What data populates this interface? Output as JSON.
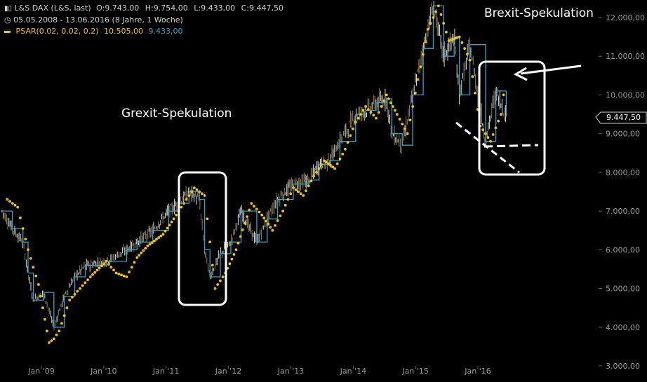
{
  "header": {
    "instrument": "L&S DAX (L&S, last)",
    "open_label": "O:",
    "open_value": "9.743,00",
    "high_label": "H:",
    "high_value": "9.754,00",
    "low_label": "L:",
    "low_value": "9.433,00",
    "close_label": "C:",
    "close_value": "9.447,50",
    "period": "05.05.2008 - 13.06.2016 (8 Jahre, 1 Woche)",
    "psar_label": "PSAR(0.02, 0.02, 0.2)",
    "psar_value": "10.505,00",
    "psar_last": "9.433,00"
  },
  "annotations": {
    "grexit": "Grexit-Spekulation",
    "brexit": "Brexit-Spekulation"
  },
  "last_price_label": "9.447,50",
  "colors": {
    "background": "#000000",
    "price_line": "#2fa6c8",
    "psar": "#f5c400",
    "candle": "#bfbfbf",
    "annotation": "#ffffff",
    "text": "#cfcfcf"
  },
  "icons": {
    "chart_type": "candlestick-icon",
    "period": "clock-icon",
    "psar_legend": "line-swatch-icon"
  },
  "chart_data": {
    "type": "line",
    "title": "L&S DAX (L&S, last)",
    "xlabel": "",
    "ylabel": "",
    "x_ticks": [
      "Jan '09",
      "Jan '10",
      "Jan '11",
      "Jan '12",
      "Jan '13",
      "Jan '14",
      "Jan '15",
      "Jan '16"
    ],
    "y_ticks": [
      "3.000,00",
      "4.000,00",
      "5.000,00",
      "6.000,00",
      "7.000,00",
      "8.000,00",
      "9.000,00",
      "10.000,00",
      "11.000,00",
      "12.000,00"
    ],
    "ylim": [
      3000,
      12500
    ],
    "x_range": [
      "2008-05-05",
      "2016-06-13"
    ],
    "grid": false,
    "price_series": {
      "name": "L&S DAX",
      "x": [
        "2008-05",
        "2008-07",
        "2008-09",
        "2008-10",
        "2008-11",
        "2009-01",
        "2009-03",
        "2009-05",
        "2009-07",
        "2009-09",
        "2010-01",
        "2010-05",
        "2010-07",
        "2010-10",
        "2011-01",
        "2011-03",
        "2011-05",
        "2011-07",
        "2011-08",
        "2011-09",
        "2011-11",
        "2012-01",
        "2012-03",
        "2012-06",
        "2012-08",
        "2012-10",
        "2013-01",
        "2013-04",
        "2013-06",
        "2013-08",
        "2013-10",
        "2014-01",
        "2014-03",
        "2014-05",
        "2014-07",
        "2014-08",
        "2014-10",
        "2014-12",
        "2015-02",
        "2015-04",
        "2015-06",
        "2015-08",
        "2015-09",
        "2015-11",
        "2016-02",
        "2016-04",
        "2016-06"
      ],
      "values": [
        7000,
        6550,
        6200,
        5400,
        4700,
        4900,
        4000,
        4800,
        5300,
        5600,
        5700,
        6000,
        6200,
        6500,
        7000,
        7200,
        7500,
        7300,
        6000,
        5300,
        5900,
        6200,
        7000,
        6200,
        6800,
        7300,
        7700,
        7800,
        8200,
        8300,
        8800,
        9500,
        9600,
        9800,
        9900,
        9000,
        8700,
        10000,
        11200,
        12300,
        11000,
        11500,
        10000,
        11300,
        8800,
        10100,
        9447.5
      ]
    },
    "psar_series": {
      "name": "PSAR(0.02, 0.02, 0.2)",
      "x": [
        "2008-06",
        "2008-08",
        "2008-10",
        "2008-12",
        "2009-02",
        "2009-03",
        "2009-04",
        "2009-06",
        "2009-08",
        "2009-10",
        "2010-01",
        "2010-03",
        "2010-05",
        "2010-07",
        "2010-09",
        "2010-12",
        "2011-02",
        "2011-04",
        "2011-06",
        "2011-08",
        "2011-10",
        "2011-12",
        "2012-02",
        "2012-05",
        "2012-07",
        "2012-09",
        "2012-11",
        "2013-01",
        "2013-03",
        "2013-05",
        "2013-07",
        "2013-09",
        "2013-11",
        "2014-01",
        "2014-03",
        "2014-05",
        "2014-07",
        "2014-09",
        "2014-11",
        "2015-01",
        "2015-03",
        "2015-05",
        "2015-07",
        "2015-09",
        "2015-11",
        "2016-01",
        "2016-03",
        "2016-05",
        "2016-06"
      ],
      "values": [
        7300,
        7100,
        6000,
        5100,
        3600,
        3700,
        3900,
        4700,
        5000,
        5300,
        5700,
        5400,
        5300,
        5800,
        6100,
        6400,
        6800,
        7200,
        7600,
        7400,
        5000,
        5400,
        6000,
        7200,
        6900,
        6500,
        7000,
        7600,
        7400,
        7900,
        8300,
        8100,
        8600,
        9300,
        9700,
        9400,
        10000,
        9500,
        9000,
        10400,
        11700,
        12300,
        11400,
        11500,
        10900,
        9200,
        8800,
        9500,
        10505
      ]
    },
    "annotations": [
      "Grexit-Spekulation",
      "Brexit-Spekulation"
    ]
  }
}
